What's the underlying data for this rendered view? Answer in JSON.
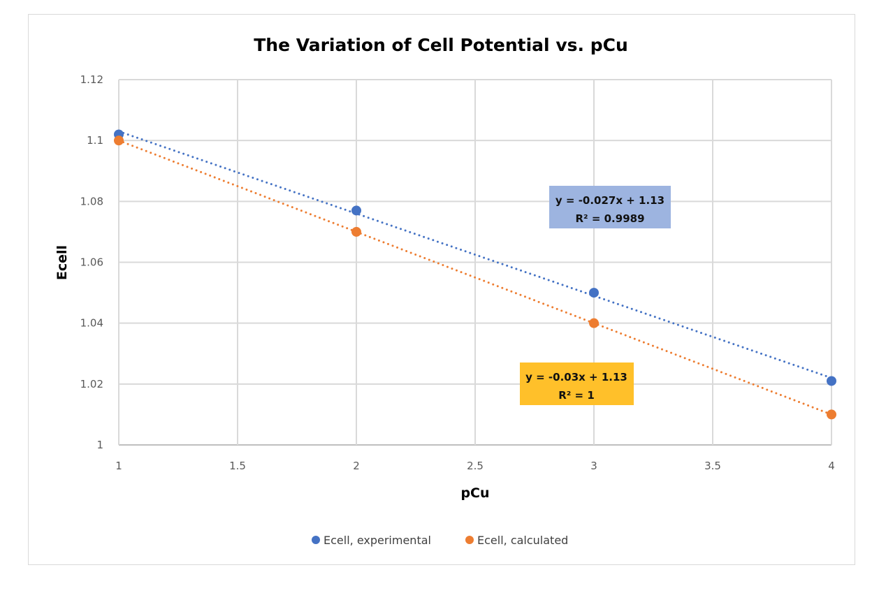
{
  "chart_data": {
    "type": "scatter",
    "title": "The Variation of Cell Potential vs. pCu",
    "xlabel": "pCu",
    "ylabel": "Ecell",
    "xlim": [
      1,
      4
    ],
    "ylim": [
      1,
      1.12
    ],
    "xticks": [
      "1",
      "1.5",
      "2",
      "2.5",
      "3",
      "3.5",
      "4"
    ],
    "yticks": [
      "1",
      "1.02",
      "1.04",
      "1.06",
      "1.08",
      "1.1",
      "1.12"
    ],
    "grid": true,
    "legend_position": "bottom",
    "series": [
      {
        "name": "Ecell, experimental",
        "color": "#4472C4",
        "x": [
          1,
          2,
          3,
          4
        ],
        "y": [
          1.102,
          1.077,
          1.05,
          1.021
        ],
        "trendline": {
          "type": "linear",
          "style": "dotted",
          "equation": "y = -0.027x + 1.13",
          "r2": "R² = 0.9989",
          "label_bg": "#9DB4E0"
        }
      },
      {
        "name": "Ecell, calculated",
        "color": "#ED7D31",
        "x": [
          1,
          2,
          3,
          4
        ],
        "y": [
          1.1,
          1.07,
          1.04,
          1.01
        ],
        "trendline": {
          "type": "linear",
          "style": "dotted",
          "equation": "y = -0.03x + 1.13",
          "r2": "R² = 1",
          "label_bg": "#FFC02A"
        }
      }
    ]
  }
}
